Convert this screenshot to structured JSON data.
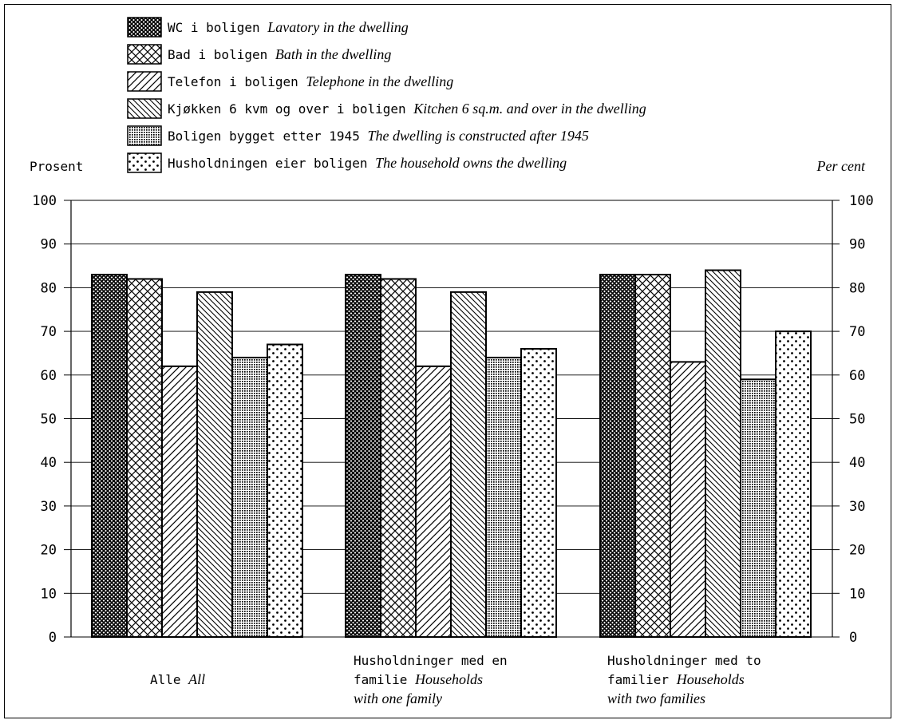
{
  "chart_data": {
    "type": "bar",
    "ylabel_left": "Prosent",
    "ylabel_right": "Per cent",
    "ylim": [
      0,
      100
    ],
    "yticks": [
      0,
      10,
      20,
      30,
      40,
      50,
      60,
      70,
      80,
      90,
      100
    ],
    "grid": true,
    "legend_position": "top",
    "categories": [
      {
        "lines": [
          {
            "no": "Alle",
            "en": "All"
          }
        ]
      },
      {
        "lines": [
          {
            "no": "Husholdninger med en",
            "en": ""
          },
          {
            "no": "familie",
            "en": "Households"
          },
          {
            "no": "",
            "en": "with one family"
          }
        ]
      },
      {
        "lines": [
          {
            "no": "Husholdninger med to",
            "en": ""
          },
          {
            "no": "familier",
            "en": "Households"
          },
          {
            "no": "",
            "en": "with two families"
          }
        ]
      }
    ],
    "series": [
      {
        "name": "WC i boligen",
        "name_en": "Lavatory in the dwelling",
        "pattern": "dense-crosshatch",
        "values": [
          83,
          83,
          83
        ]
      },
      {
        "name": "Bad i boligen",
        "name_en": "Bath in the dwelling",
        "pattern": "crosshatch",
        "values": [
          82,
          82,
          83
        ]
      },
      {
        "name": "Telefon i boligen",
        "name_en": "Telephone in the dwelling",
        "pattern": "forward-diagonal",
        "values": [
          62,
          62,
          63
        ]
      },
      {
        "name": "Kjøkken 6 kvm og over i boligen",
        "name_en": "Kitchen 6 sq.m. and over in the dwelling",
        "pattern": "back-diagonal",
        "values": [
          79,
          79,
          84
        ]
      },
      {
        "name": "Boligen bygget etter 1945",
        "name_en": "The dwelling is constructed after 1945",
        "pattern": "fine-dots",
        "values": [
          64,
          64,
          59
        ]
      },
      {
        "name": "Husholdningen eier boligen",
        "name_en": "The household owns the dwelling",
        "pattern": "sparse-dots",
        "values": [
          67,
          66,
          70
        ]
      }
    ]
  }
}
